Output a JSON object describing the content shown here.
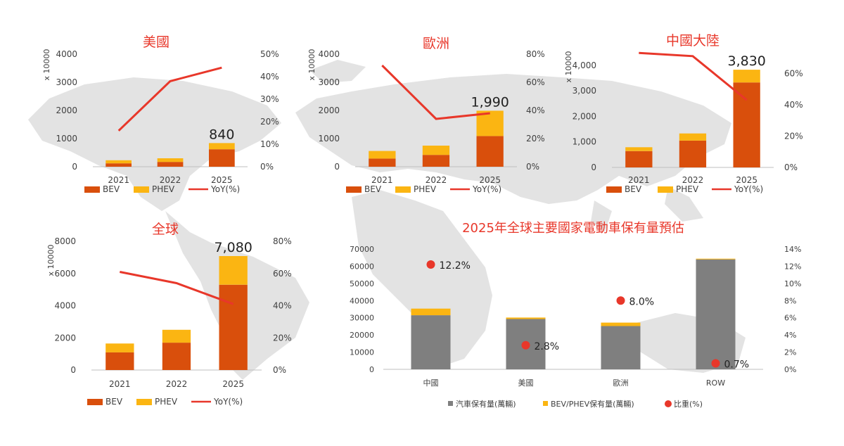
{
  "colors": {
    "bev": "#d94f0c",
    "phev": "#fbb512",
    "yoy": "#e8372a",
    "gray": "#7f7f7f",
    "title": "#e8372a",
    "map": "#d9d9d9",
    "axis": "#404040"
  },
  "legend": {
    "bev": "BEV",
    "phev": "PHEV",
    "yoy": "YoY(%)",
    "car_stock": "汽車保有量(萬輛)",
    "ev_stock": "BEV/PHEV保有量(萬輛)",
    "share": "比重(%)"
  },
  "chart_data": [
    {
      "type": "bar",
      "id": "us",
      "title": "美國",
      "ylabel": "x 10000",
      "categories": [
        "2021",
        "2022",
        "2025"
      ],
      "series": [
        {
          "name": "BEV",
          "values": [
            120,
            170,
            620
          ]
        },
        {
          "name": "PHEV",
          "values": [
            110,
            130,
            220
          ]
        },
        {
          "name": "YoY(%)",
          "values": [
            16,
            38,
            44
          ],
          "axis": "right"
        }
      ],
      "ylim": [
        0,
        4000
      ],
      "yticks": [
        "0",
        "1000",
        "2000",
        "3000",
        "4000"
      ],
      "y2lim": [
        0,
        50
      ],
      "y2ticks": [
        "0%",
        "10%",
        "20%",
        "30%",
        "40%",
        "50%"
      ],
      "total_label": "840",
      "total_label_on": 2
    },
    {
      "type": "bar",
      "id": "eu",
      "title": "歐洲",
      "ylabel": "x 10000",
      "categories": [
        "2021",
        "2022",
        "2025"
      ],
      "series": [
        {
          "name": "BEV",
          "values": [
            290,
            420,
            1090
          ]
        },
        {
          "name": "PHEV",
          "values": [
            270,
            330,
            900
          ]
        },
        {
          "name": "YoY(%)",
          "values": [
            72,
            34,
            38
          ],
          "axis": "right"
        }
      ],
      "ylim": [
        0,
        4000
      ],
      "yticks": [
        "0",
        "1000",
        "2000",
        "3000",
        "4000"
      ],
      "y2lim": [
        0,
        80
      ],
      "y2ticks": [
        "0%",
        "20%",
        "40%",
        "60%",
        "80%"
      ],
      "total_label": "1,990",
      "total_label_on": 2
    },
    {
      "type": "bar",
      "id": "cn",
      "title": "中國大陸",
      "ylabel": "x 10000",
      "categories": [
        "2021",
        "2022",
        "2025"
      ],
      "series": [
        {
          "name": "BEV",
          "values": [
            640,
            1050,
            3330
          ]
        },
        {
          "name": "PHEV",
          "values": [
            150,
            280,
            500
          ]
        },
        {
          "name": "YoY(%)",
          "values": [
            73,
            71,
            43
          ],
          "axis": "right"
        }
      ],
      "ylim": [
        0,
        4300
      ],
      "yticks": [
        "0",
        "1,000",
        "2,000",
        "3,000",
        "4,000"
      ],
      "y2lim": [
        0,
        70
      ],
      "y2ticks": [
        "0%",
        "20%",
        "40%",
        "60%"
      ],
      "total_label": "3,830",
      "total_label_on": 2
    },
    {
      "type": "bar",
      "id": "global",
      "title": "全球",
      "ylabel": "x 10000",
      "categories": [
        "2021",
        "2022",
        "2025"
      ],
      "series": [
        {
          "name": "BEV",
          "values": [
            1100,
            1700,
            5300
          ]
        },
        {
          "name": "PHEV",
          "values": [
            550,
            800,
            1780
          ]
        },
        {
          "name": "YoY(%)",
          "values": [
            61,
            54,
            41
          ],
          "axis": "right"
        }
      ],
      "ylim": [
        0,
        8000
      ],
      "yticks": [
        "0",
        "2000",
        "4000",
        "6000",
        "8000"
      ],
      "y2lim": [
        0,
        80
      ],
      "y2ticks": [
        "0%",
        "20%",
        "40%",
        "60%",
        "80%"
      ],
      "total_label": "7,080",
      "total_label_on": 2
    },
    {
      "type": "bar",
      "id": "stock2025",
      "title": "2025年全球主要國家電動車保有量預估",
      "categories": [
        "中國",
        "美國",
        "歐洲",
        "ROW"
      ],
      "series": [
        {
          "name": "汽車保有量(萬輛)",
          "values": [
            31500,
            29300,
            25200,
            64000
          ]
        },
        {
          "name": "BEV/PHEV保有量(萬輛)",
          "values": [
            3830,
            840,
            1990,
            400
          ]
        },
        {
          "name": "比重(%)",
          "values": [
            12.2,
            2.8,
            8.0,
            0.7
          ],
          "axis": "right"
        }
      ],
      "point_labels": [
        "12.2%",
        "2.8%",
        "8.0%",
        "0.7%"
      ],
      "ylim": [
        0,
        70000
      ],
      "yticks": [
        "0",
        "10000",
        "20000",
        "30000",
        "40000",
        "50000",
        "60000",
        "70000"
      ],
      "y2lim": [
        0,
        14
      ],
      "y2ticks": [
        "0%",
        "2%",
        "4%",
        "6%",
        "8%",
        "10%",
        "12%",
        "14%"
      ]
    }
  ]
}
